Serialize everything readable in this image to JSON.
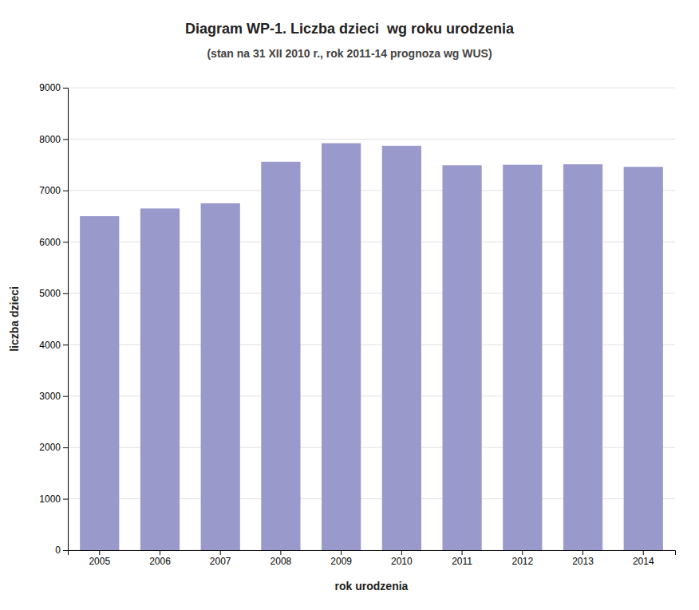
{
  "chart_data": {
    "type": "bar",
    "title": "Diagram WP-1. Liczba dzieci  wg roku urodzenia",
    "subtitle": "(stan na 31 XII 2010 r., rok 2011-14 prognoza wg WUS)",
    "xlabel": "rok urodzenia",
    "ylabel": "liczba dzieci",
    "categories": [
      "2005",
      "2006",
      "2007",
      "2008",
      "2009",
      "2010",
      "2011",
      "2012",
      "2013",
      "2014"
    ],
    "values": [
      6500,
      6650,
      6750,
      7560,
      7920,
      7870,
      7490,
      7500,
      7510,
      7460
    ],
    "color": "#9999cc",
    "ylim": [
      0,
      9000
    ],
    "yticks": [
      0,
      1000,
      2000,
      3000,
      4000,
      5000,
      6000,
      7000,
      8000,
      9000
    ],
    "grid": true
  }
}
